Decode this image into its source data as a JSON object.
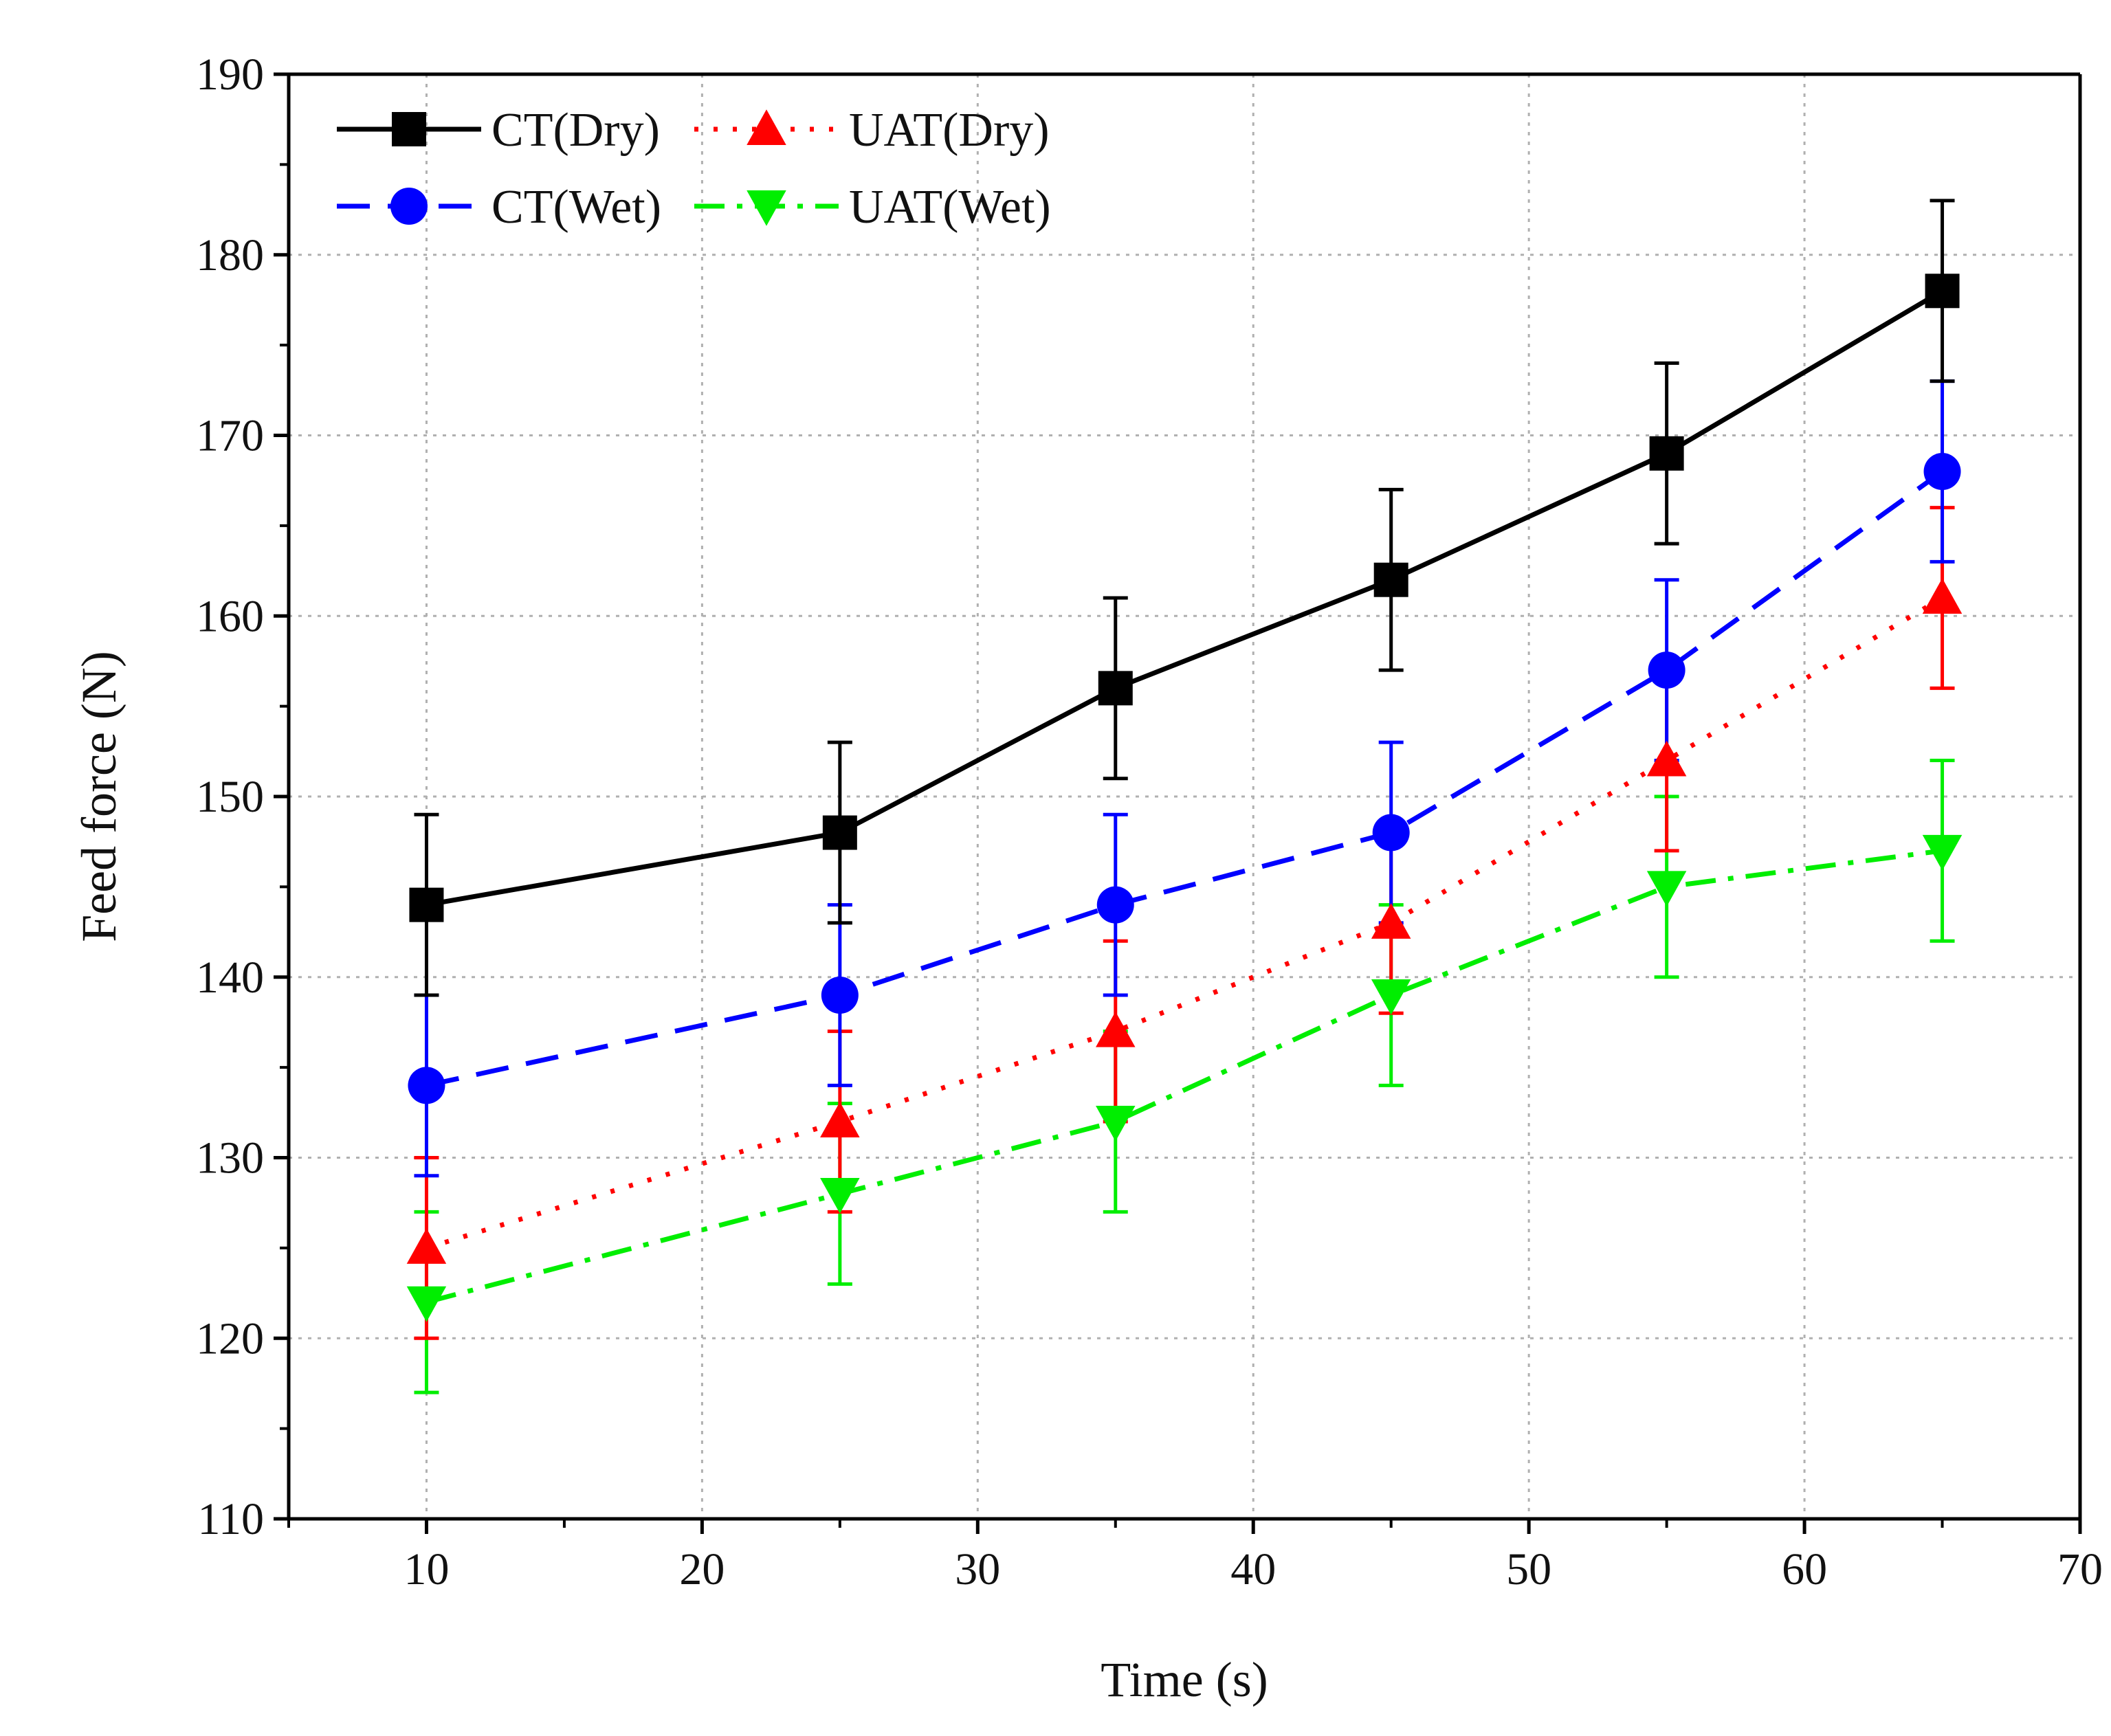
{
  "chart_data": {
    "type": "line",
    "title": "",
    "xlabel": "Time (s)",
    "ylabel": "Feed force (N)",
    "xlim": [
      5,
      70
    ],
    "ylim": [
      110,
      190
    ],
    "xticks": [
      10,
      20,
      30,
      40,
      50,
      60,
      70
    ],
    "yticks": [
      110,
      120,
      130,
      140,
      150,
      160,
      170,
      180,
      190
    ],
    "grid": true,
    "legend_position": "top-left",
    "x": [
      10,
      25,
      35,
      45,
      55,
      65
    ],
    "series": [
      {
        "name": "CT(Dry)",
        "color": "#000000",
        "line_style": "solid",
        "marker": "square",
        "values": [
          144,
          148,
          156,
          162,
          169,
          178
        ],
        "error": [
          5,
          5,
          5,
          5,
          5,
          5
        ]
      },
      {
        "name": "UAT(Dry)",
        "color": "#ff0000",
        "line_style": "dotted",
        "marker": "triangle-up",
        "values": [
          125,
          132,
          137,
          143,
          152,
          161
        ],
        "error": [
          5,
          5,
          5,
          5,
          5,
          5
        ]
      },
      {
        "name": "CT(Wet)",
        "color": "#0000ff",
        "line_style": "dashed",
        "marker": "circle",
        "values": [
          134,
          139,
          144,
          148,
          157,
          168
        ],
        "error": [
          5,
          5,
          5,
          5,
          5,
          5
        ]
      },
      {
        "name": "UAT(Wet)",
        "color": "#00ee00",
        "line_style": "dash-dot",
        "marker": "triangle-down",
        "values": [
          122,
          128,
          132,
          139,
          145,
          147
        ],
        "error": [
          5,
          5,
          5,
          5,
          5,
          5
        ]
      }
    ]
  }
}
